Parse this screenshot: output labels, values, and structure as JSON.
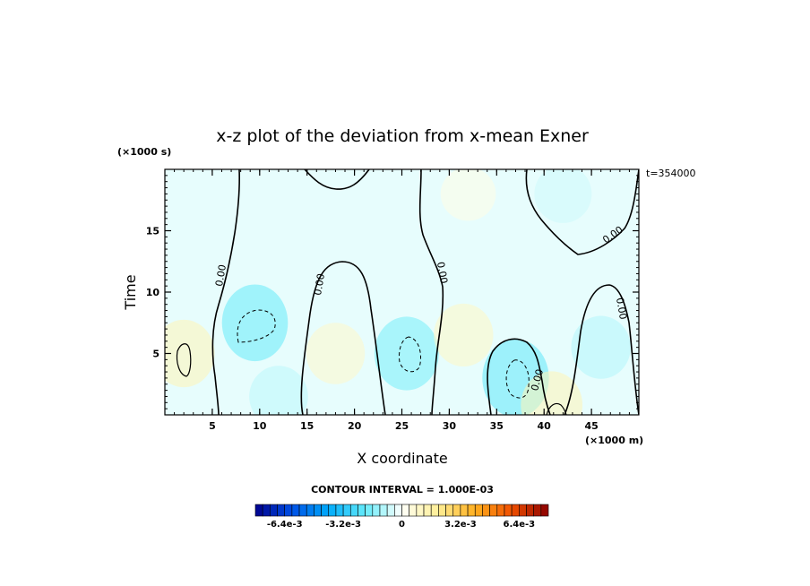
{
  "title": "x-z plot of the deviation from x-mean Exner",
  "time_label": "t=354000",
  "contour_interval_text": "CONTOUR INTERVAL = 1.000E-03",
  "chart_data": {
    "type": "heatmap",
    "title": "x-z plot of the deviation from x-mean Exner",
    "xlabel": "X coordinate",
    "ylabel": "Time",
    "x_unit": "(×1000 m)",
    "y_unit": "(×1000 s)",
    "xlim": [
      0,
      50
    ],
    "ylim": [
      0,
      20
    ],
    "x_ticks": [
      5,
      10,
      15,
      20,
      25,
      30,
      35,
      40,
      45
    ],
    "y_ticks": [
      5,
      10,
      15
    ],
    "contour_label": "0.00",
    "colorbar": {
      "min": -0.008,
      "max": 0.008,
      "tick_values": [
        -0.0064,
        -0.0032,
        0,
        0.0032,
        0.0064
      ],
      "tick_labels": [
        "-6.4e-3",
        "-3.2e-3",
        "0",
        "3.2e-3",
        "6.4e-3"
      ]
    },
    "field_centers": [
      {
        "x": 2.0,
        "y": 5.0,
        "value": 0.0012
      },
      {
        "x": 9.5,
        "y": 7.5,
        "value": -0.0018
      },
      {
        "x": 12.0,
        "y": 1.5,
        "value": -0.0008
      },
      {
        "x": 18.0,
        "y": 5.0,
        "value": 0.0008
      },
      {
        "x": 25.5,
        "y": 5.0,
        "value": -0.0016
      },
      {
        "x": 31.5,
        "y": 6.5,
        "value": 0.0009
      },
      {
        "x": 37.0,
        "y": 3.0,
        "value": -0.0019
      },
      {
        "x": 40.8,
        "y": 0.8,
        "value": 0.0012
      },
      {
        "x": 46.0,
        "y": 5.5,
        "value": -0.0009
      },
      {
        "x": 42.0,
        "y": 18.0,
        "value": -0.0006
      },
      {
        "x": 32.0,
        "y": 18.0,
        "value": 0.0003
      }
    ]
  }
}
